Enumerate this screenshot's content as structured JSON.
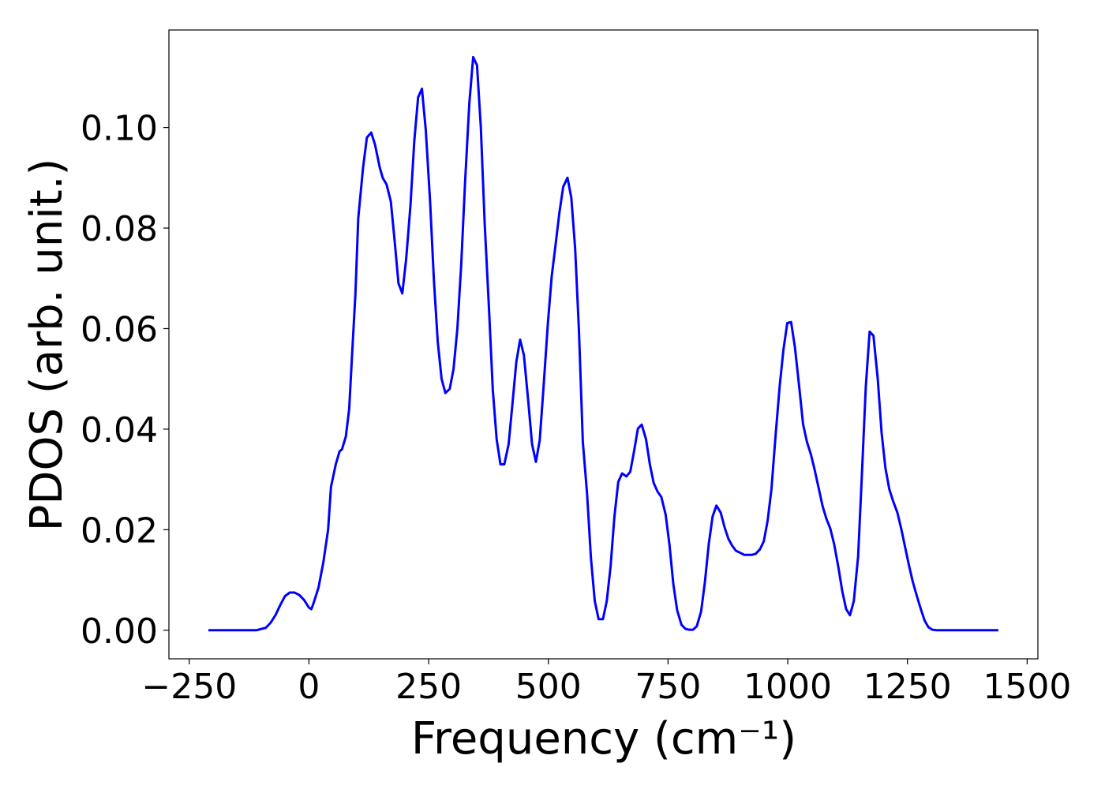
{
  "chart_data": {
    "type": "line",
    "xlabel": "Frequency (cm⁻¹)",
    "ylabel": "PDOS (arb. unit.)",
    "xlim": [
      -292.5,
      1522.5
    ],
    "ylim": [
      -0.00568,
      0.1194
    ],
    "xticks": [
      {
        "value": -250,
        "label": "−250"
      },
      0,
      250,
      500,
      750,
      1000,
      1250,
      1500
    ],
    "yticks": [
      {
        "value": 0,
        "label": "0.00"
      },
      {
        "value": 0.02,
        "label": "0.02"
      },
      {
        "value": 0.04,
        "label": "0.04"
      },
      {
        "value": 0.06,
        "label": "0.06"
      },
      {
        "value": 0.08,
        "label": "0.08"
      },
      {
        "value": 0.1,
        "label": "0.10"
      }
    ],
    "grid": false,
    "x": [
      -210,
      -110,
      -90,
      -80,
      -70,
      -60,
      -50,
      -40,
      -30,
      -20,
      -10,
      0,
      5,
      10,
      20,
      30,
      40,
      46,
      56,
      64,
      69,
      77,
      84,
      90,
      97,
      103,
      113,
      121,
      130,
      138,
      148,
      154,
      162,
      171,
      179,
      187,
      195,
      203,
      212,
      220,
      228,
      236,
      244,
      253,
      261,
      269,
      277,
      285,
      294,
      302,
      310,
      318,
      326,
      335,
      343,
      351,
      359,
      367,
      376,
      384,
      392,
      400,
      408,
      417,
      425,
      433,
      441,
      449,
      458,
      466,
      474,
      482,
      490,
      499,
      507,
      515,
      523,
      531,
      540,
      548,
      556,
      564,
      572,
      581,
      589,
      597,
      605,
      614,
      622,
      630,
      638,
      646,
      654,
      663,
      671,
      679,
      687,
      695,
      704,
      712,
      720,
      728,
      736,
      745,
      753,
      761,
      769,
      778,
      786,
      794,
      802,
      810,
      819,
      827,
      835,
      843,
      851,
      860,
      868,
      876,
      884,
      892,
      901,
      909,
      917,
      925,
      933,
      942,
      950,
      958,
      966,
      974,
      983,
      991,
      999,
      1007,
      1015,
      1024,
      1032,
      1040,
      1048,
      1056,
      1065,
      1073,
      1081,
      1089,
      1097,
      1106,
      1114,
      1122,
      1130,
      1138,
      1147,
      1155,
      1163,
      1171,
      1179,
      1188,
      1196,
      1204,
      1212,
      1220,
      1229,
      1237,
      1245,
      1253,
      1261,
      1270,
      1278,
      1286,
      1294,
      1302,
      1312,
      1440
    ],
    "series": [
      {
        "name": "PDOS",
        "color": "#0000ff",
        "values": [
          0,
          0,
          0.0005,
          0.0015,
          0.003,
          0.005,
          0.0068,
          0.0075,
          0.0075,
          0.007,
          0.006,
          0.0045,
          0.0042,
          0.0055,
          0.0085,
          0.0135,
          0.02,
          0.0285,
          0.033,
          0.0356,
          0.036,
          0.0385,
          0.044,
          0.0547,
          0.0668,
          0.082,
          0.092,
          0.098,
          0.099,
          0.0966,
          0.092,
          0.09,
          0.0887,
          0.0853,
          0.0774,
          0.069,
          0.067,
          0.0738,
          0.0845,
          0.0973,
          0.106,
          0.1077,
          0.0995,
          0.0853,
          0.0696,
          0.0574,
          0.05,
          0.0472,
          0.048,
          0.052,
          0.06,
          0.0727,
          0.089,
          0.1049,
          0.114,
          0.1124,
          0.1,
          0.081,
          0.064,
          0.0478,
          0.038,
          0.033,
          0.033,
          0.037,
          0.045,
          0.0533,
          0.0578,
          0.0547,
          0.0456,
          0.037,
          0.0335,
          0.0378,
          0.0484,
          0.061,
          0.0704,
          0.0766,
          0.083,
          0.0882,
          0.09,
          0.086,
          0.0759,
          0.0594,
          0.0375,
          0.027,
          0.0143,
          0.0058,
          0.0022,
          0.0022,
          0.0058,
          0.0127,
          0.0226,
          0.0295,
          0.0312,
          0.0306,
          0.0315,
          0.0356,
          0.0401,
          0.0409,
          0.038,
          0.033,
          0.0293,
          0.0276,
          0.0265,
          0.023,
          0.017,
          0.0092,
          0.004,
          0.0011,
          0.0003,
          0.0001,
          0.0001,
          0.0008,
          0.0037,
          0.0096,
          0.0171,
          0.0226,
          0.0248,
          0.0234,
          0.0205,
          0.0182,
          0.0168,
          0.0158,
          0.0154,
          0.015,
          0.015,
          0.015,
          0.0152,
          0.0161,
          0.0177,
          0.0218,
          0.0281,
          0.038,
          0.0484,
          0.0558,
          0.0611,
          0.0613,
          0.0563,
          0.0484,
          0.041,
          0.0375,
          0.0351,
          0.032,
          0.0281,
          0.0246,
          0.0221,
          0.0202,
          0.0171,
          0.0124,
          0.0077,
          0.0042,
          0.003,
          0.0058,
          0.0147,
          0.0312,
          0.0484,
          0.0594,
          0.0586,
          0.05,
          0.0393,
          0.0323,
          0.0281,
          0.0257,
          0.0234,
          0.0202,
          0.0166,
          0.013,
          0.0097,
          0.0067,
          0.0042,
          0.0019,
          0.0006,
          0.0001,
          0,
          0
        ]
      }
    ]
  }
}
